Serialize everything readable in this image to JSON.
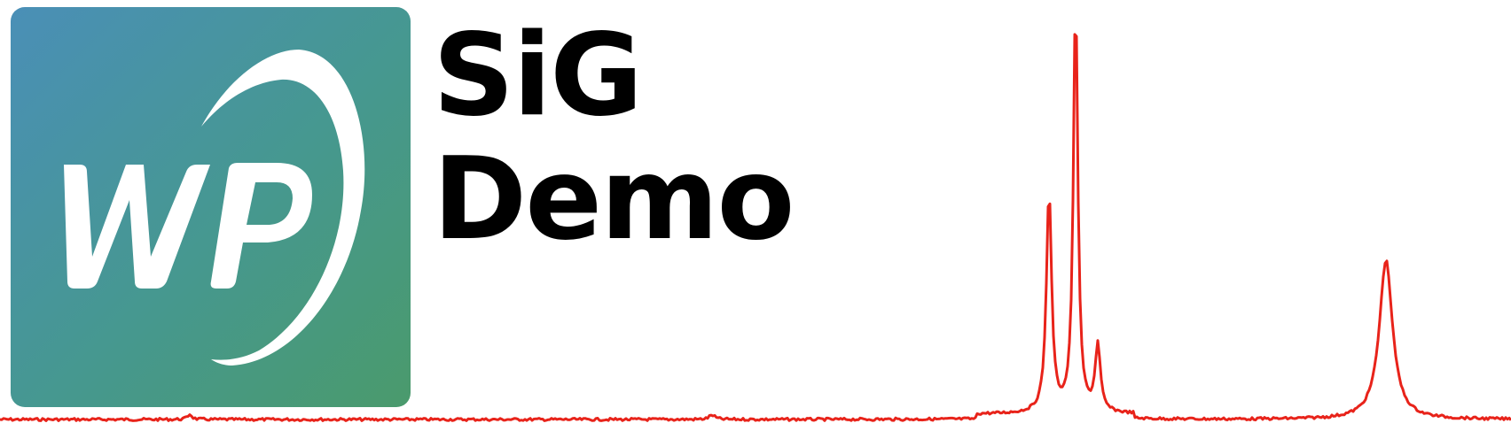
{
  "logo": {
    "icon": "wp-monogram-with-swoosh",
    "monogram_text": "WP",
    "gradient_colors": [
      "#4a8fb7",
      "#46988f",
      "#4a9a6c"
    ]
  },
  "title": {
    "line1": "SiG",
    "line2": "Demo"
  },
  "spectrum": {
    "icon": "spectrum-trace",
    "color": "#e8231a"
  }
}
